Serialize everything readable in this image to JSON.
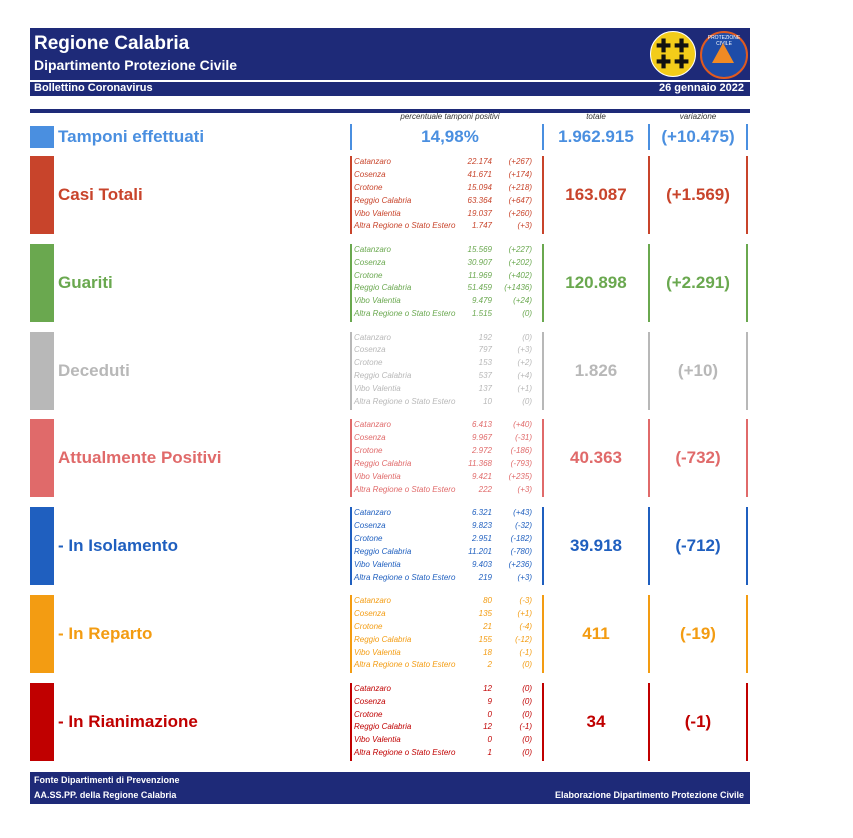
{
  "header": {
    "title": "Regione Calabria",
    "subtitle": "Dipartimento Protezione Civile",
    "bulletin": "Bollettino Coronavirus",
    "date": "26 gennaio 2022",
    "logo2_text": "PROTEZIONE CIVILE"
  },
  "columns": {
    "percent_label": "percentuale tamponi positivi",
    "total_label": "totale",
    "variation_label": "variazione"
  },
  "tamponi": {
    "label": "Tamponi effettuati",
    "percent": "14,98%",
    "total": "1.962.915",
    "variation": "(+10.475)",
    "color": "#4a8fe0"
  },
  "sections": [
    {
      "id": "casi-totali",
      "label": "Casi Totali",
      "color": "#c8442b",
      "total": "163.087",
      "variation": "(+1.569)",
      "rows": [
        {
          "prov": "Catanzaro",
          "val": "22.174",
          "delta": "(+267)"
        },
        {
          "prov": "Cosenza",
          "val": "41.671",
          "delta": "(+174)"
        },
        {
          "prov": "Crotone",
          "val": "15.094",
          "delta": "(+218)"
        },
        {
          "prov": "Reggio Calabria",
          "val": "63.364",
          "delta": "(+647)"
        },
        {
          "prov": "Vibo Valentia",
          "val": "19.037",
          "delta": "(+260)"
        },
        {
          "prov": "Altra Regione o Stato Estero",
          "val": "1.747",
          "delta": "(+3)"
        }
      ]
    },
    {
      "id": "guariti",
      "label": "Guariti",
      "color": "#6aa84f",
      "total": "120.898",
      "variation": "(+2.291)",
      "rows": [
        {
          "prov": "Catanzaro",
          "val": "15.569",
          "delta": "(+227)"
        },
        {
          "prov": "Cosenza",
          "val": "30.907",
          "delta": "(+202)"
        },
        {
          "prov": "Crotone",
          "val": "11.969",
          "delta": "(+402)"
        },
        {
          "prov": "Reggio Calabria",
          "val": "51.459",
          "delta": "(+1436)"
        },
        {
          "prov": "Vibo Valentia",
          "val": "9.479",
          "delta": "(+24)"
        },
        {
          "prov": "Altra Regione o Stato Estero",
          "val": "1.515",
          "delta": "(0)"
        }
      ]
    },
    {
      "id": "deceduti",
      "label": "Deceduti",
      "color": "#b8b8b8",
      "total": "1.826",
      "variation": "(+10)",
      "rows": [
        {
          "prov": "Catanzaro",
          "val": "192",
          "delta": "(0)"
        },
        {
          "prov": "Cosenza",
          "val": "797",
          "delta": "(+3)"
        },
        {
          "prov": "Crotone",
          "val": "153",
          "delta": "(+2)"
        },
        {
          "prov": "Reggio Calabria",
          "val": "537",
          "delta": "(+4)"
        },
        {
          "prov": "Vibo Valentia",
          "val": "137",
          "delta": "(+1)"
        },
        {
          "prov": "Altra Regione o Stato Estero",
          "val": "10",
          "delta": "(0)"
        }
      ]
    },
    {
      "id": "attualmente-positivi",
      "label": "Attualmente Positivi",
      "color": "#e06a6a",
      "total": "40.363",
      "variation": "(-732)",
      "rows": [
        {
          "prov": "Catanzaro",
          "val": "6.413",
          "delta": "(+40)"
        },
        {
          "prov": "Cosenza",
          "val": "9.967",
          "delta": "(-31)"
        },
        {
          "prov": "Crotone",
          "val": "2.972",
          "delta": "(-186)"
        },
        {
          "prov": "Reggio Calabria",
          "val": "11.368",
          "delta": "(-793)"
        },
        {
          "prov": "Vibo Valentia",
          "val": "9.421",
          "delta": "(+235)"
        },
        {
          "prov": "Altra Regione o Stato Estero",
          "val": "222",
          "delta": "(+3)"
        }
      ]
    },
    {
      "id": "in-isolamento",
      "label": "- In Isolamento",
      "color": "#1f5fbf",
      "total": "39.918",
      "variation": "(-712)",
      "rows": [
        {
          "prov": "Catanzaro",
          "val": "6.321",
          "delta": "(+43)"
        },
        {
          "prov": "Cosenza",
          "val": "9.823",
          "delta": "(-32)"
        },
        {
          "prov": "Crotone",
          "val": "2.951",
          "delta": "(-182)"
        },
        {
          "prov": "Reggio Calabria",
          "val": "11.201",
          "delta": "(-780)"
        },
        {
          "prov": "Vibo Valentia",
          "val": "9.403",
          "delta": "(+236)"
        },
        {
          "prov": "Altra Regione o Stato Estero",
          "val": "219",
          "delta": "(+3)"
        }
      ]
    },
    {
      "id": "in-reparto",
      "label": "- In Reparto",
      "color": "#f39c12",
      "total": "411",
      "variation": "(-19)",
      "rows": [
        {
          "prov": "Catanzaro",
          "val": "80",
          "delta": "(-3)"
        },
        {
          "prov": "Cosenza",
          "val": "135",
          "delta": "(+1)"
        },
        {
          "prov": "Crotone",
          "val": "21",
          "delta": "(-4)"
        },
        {
          "prov": "Reggio Calabria",
          "val": "155",
          "delta": "(-12)"
        },
        {
          "prov": "Vibo Valentia",
          "val": "18",
          "delta": "(-1)"
        },
        {
          "prov": "Altra Regione o Stato Estero",
          "val": "2",
          "delta": "(0)"
        }
      ]
    },
    {
      "id": "in-rianimazione",
      "label": "- In Rianimazione",
      "color": "#c00000",
      "total": "34",
      "variation": "(-1)",
      "rows": [
        {
          "prov": "Catanzaro",
          "val": "12",
          "delta": "(0)"
        },
        {
          "prov": "Cosenza",
          "val": "9",
          "delta": "(0)"
        },
        {
          "prov": "Crotone",
          "val": "0",
          "delta": "(0)"
        },
        {
          "prov": "Reggio Calabria",
          "val": "12",
          "delta": "(-1)"
        },
        {
          "prov": "Vibo Valentia",
          "val": "0",
          "delta": "(0)"
        },
        {
          "prov": "Altra Regione o Stato Estero",
          "val": "1",
          "delta": "(0)"
        }
      ]
    }
  ],
  "footer": {
    "line1": "Fonte Dipartimenti di Prevenzione",
    "line2": "AA.SS.PP.  della Regione Calabria",
    "right": "Elaborazione Dipartimento Protezione Civile"
  }
}
